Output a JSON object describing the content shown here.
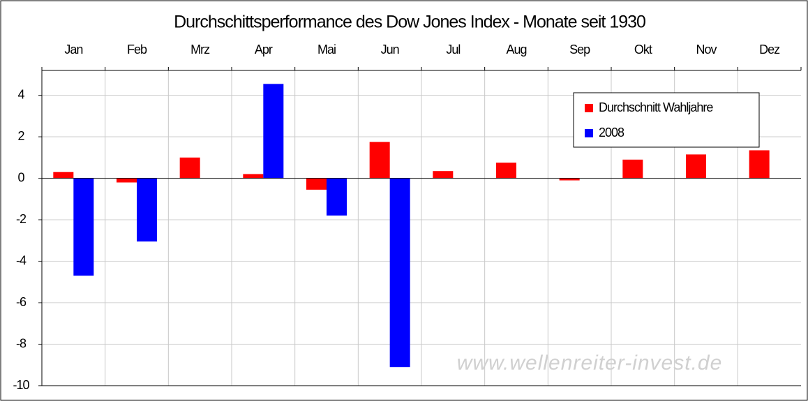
{
  "chart_data": {
    "type": "bar",
    "title": "Durchschittsperformance des Dow Jones Index - Monate seit 1930",
    "categories": [
      "Jan",
      "Feb",
      "Mrz",
      "Apr",
      "Mai",
      "Jun",
      "Jul",
      "Aug",
      "Sep",
      "Okt",
      "Nov",
      "Dez"
    ],
    "series": [
      {
        "name": "Durchschnitt Wahljahre",
        "color": "#ff0000",
        "values": [
          0.3,
          -0.2,
          1.0,
          0.2,
          -0.55,
          1.75,
          0.35,
          0.75,
          -0.1,
          0.9,
          1.15,
          1.35
        ]
      },
      {
        "name": "2008",
        "color": "#0000ff",
        "values": [
          -4.7,
          -3.05,
          null,
          4.55,
          -1.8,
          -9.1,
          null,
          null,
          null,
          null,
          null,
          null
        ]
      }
    ],
    "ylim": [
      -10,
      5.2
    ],
    "yticks": [
      -10,
      -8,
      -6,
      -4,
      -2,
      0,
      2,
      4
    ],
    "grid": true,
    "legend": "top-right",
    "watermark": "www.wellenreiter-invest.de"
  }
}
